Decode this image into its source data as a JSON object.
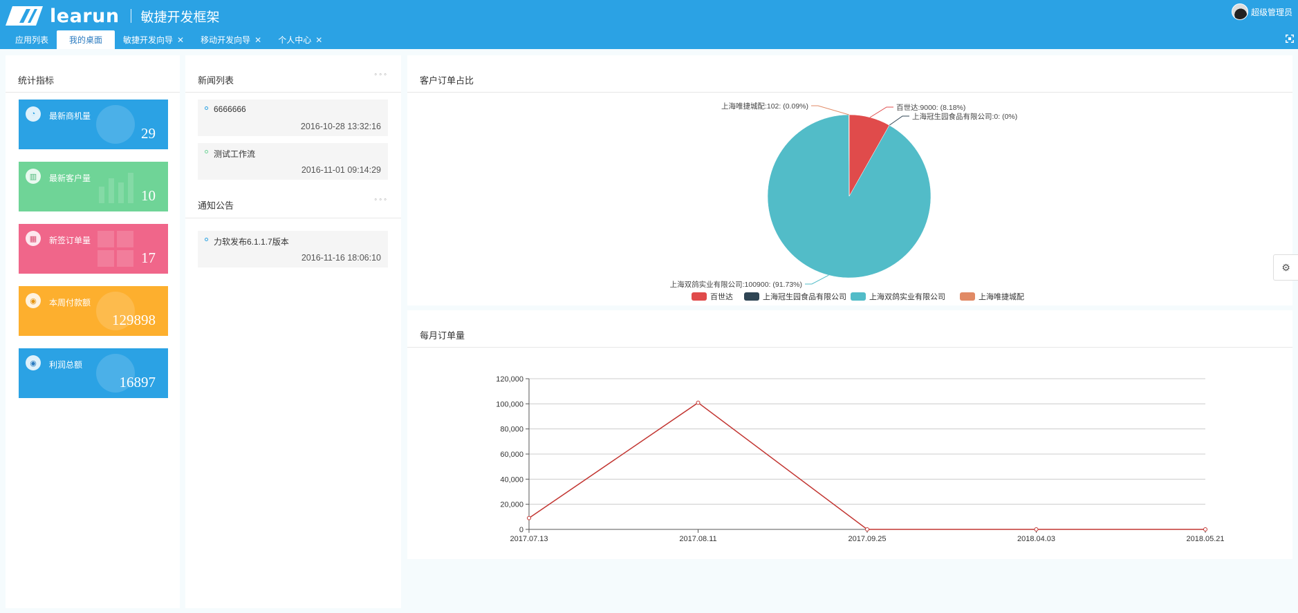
{
  "header": {
    "brand": "learun",
    "subtitle": "敏捷开发框架",
    "user_name": "超级管理员",
    "tabs": [
      {
        "label": "应用列表",
        "active": false,
        "closable": false
      },
      {
        "label": "我的桌面",
        "active": true,
        "closable": false
      },
      {
        "label": "敏捷开发向导",
        "active": false,
        "closable": true
      },
      {
        "label": "移动开发向导",
        "active": false,
        "closable": true
      },
      {
        "label": "个人中心",
        "active": false,
        "closable": true
      }
    ],
    "close_glyph": "✕"
  },
  "stats": {
    "title": "统计指标",
    "items": [
      {
        "label": "最新商机量",
        "value": "29",
        "color": "#2ba2e4",
        "icon": "pie-chart-icon"
      },
      {
        "label": "最新客户量",
        "value": "10",
        "color": "#6fd497",
        "icon": "bar-chart-icon"
      },
      {
        "label": "新签订单量",
        "value": "17",
        "color": "#f0668a",
        "icon": "windows-icon"
      },
      {
        "label": "本周付款额",
        "value": "129898",
        "color": "#fdaf2e",
        "icon": "globe-icon"
      },
      {
        "label": "利润总额",
        "value": "16897",
        "color": "#2ba2e4",
        "icon": "earth-icon"
      }
    ]
  },
  "news": {
    "title": "新闻列表",
    "more": "◦◦◦",
    "items": [
      {
        "title": "6666666",
        "date": "2016-10-28 13:32:16"
      },
      {
        "title": "测试工作流",
        "date": "2016-11-01 09:14:29"
      }
    ]
  },
  "notices": {
    "title": "通知公告",
    "more": "◦◦◦",
    "items": [
      {
        "title": "力软发布6.1.1.7版本",
        "date": "2016-11-16 18:06:10"
      }
    ]
  },
  "chart_data": [
    {
      "type": "pie",
      "title": "客户订单占比",
      "slices": [
        {
          "name": "百世达",
          "value": 9000,
          "label": "百世达:9000: (8.18%)",
          "color": "#e04b4b"
        },
        {
          "name": "上海冠生园食品有限公司",
          "value": 0,
          "label": "上海冠生园食品有限公司:0: (0%)",
          "color": "#2f4554"
        },
        {
          "name": "上海双鸽实业有限公司",
          "value": 100900,
          "label": "上海双鸽实业有限公司:100900: (91.73%)",
          "color": "#52bcc8"
        },
        {
          "name": "上海唯捷城配",
          "value": 102,
          "label": "上海唯捷城配:102: (0.09%)",
          "color": "#e18a65"
        }
      ],
      "legend": [
        "百世达",
        "上海冠生园食品有限公司",
        "上海双鸽实业有限公司",
        "上海唯捷城配"
      ],
      "legend_position": "bottom"
    },
    {
      "type": "line",
      "title": "每月订单量",
      "categories": [
        "2017.07.13",
        "2017.08.11",
        "2017.09.25",
        "2018.04.03",
        "2018.05.21"
      ],
      "series": [
        {
          "values": [
            9000,
            100900,
            0,
            0,
            0
          ],
          "color": "#c23531"
        }
      ],
      "ylim": [
        0,
        120000
      ],
      "yticks": [
        "0",
        "20,000",
        "40,000",
        "60,000",
        "80,000",
        "100,000",
        "120,000"
      ],
      "grid": true
    }
  ],
  "colors": {
    "header": "#2ba2e4",
    "accent": "#2ba2e4"
  }
}
